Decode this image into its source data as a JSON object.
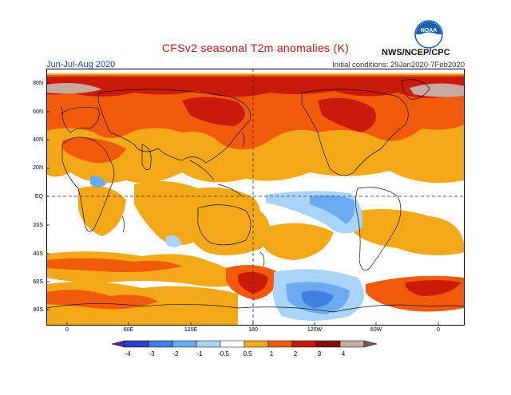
{
  "header": {
    "title": "CFSv2 seasonal T2m anomalies (K)",
    "season": "Jun-Jul-Aug 2020",
    "initial_conditions": "Initial conditions: 29Jan2020-7Feb2020",
    "agency": "NWS/NCEP/CPC",
    "logo_text": "NOAA"
  },
  "map": {
    "lat_labels": [
      "80N",
      "60N",
      "40N",
      "20N",
      "EQ",
      "20S",
      "40S",
      "60S",
      "80S"
    ],
    "lon_labels": [
      "0",
      "60E",
      "120E",
      "180",
      "120W",
      "60W",
      "0"
    ]
  },
  "colorbar": {
    "labels": [
      "-4",
      "-3",
      "-2",
      "-1",
      "-0.5",
      "0.5",
      "1",
      "2",
      "3",
      "4"
    ],
    "colors": [
      "#5a22b0",
      "#2a3fcf",
      "#3f7fe0",
      "#6aaaf0",
      "#a8d4f7",
      "#ffffff",
      "#f3a818",
      "#f05a0a",
      "#cc1a0a",
      "#8a0a0a",
      "#c9a8a0",
      "#7a5a50"
    ]
  }
}
